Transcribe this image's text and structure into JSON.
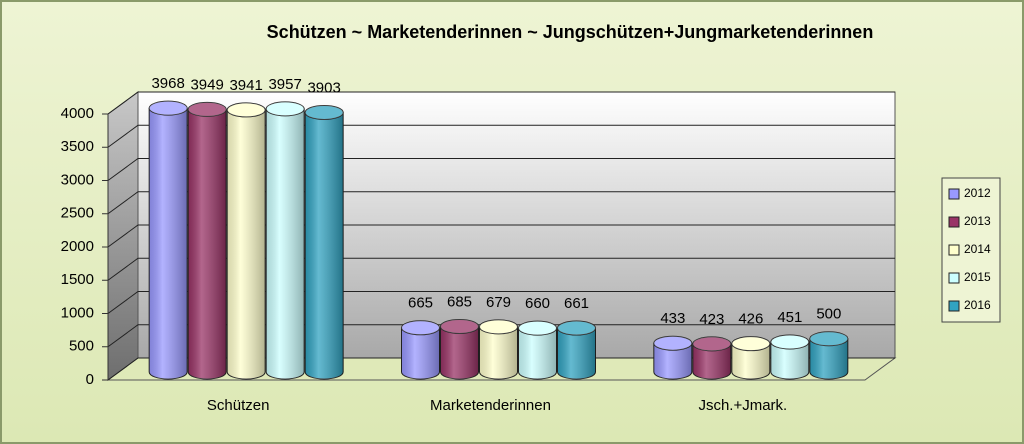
{
  "chart_data": {
    "type": "cylinder-bar",
    "title": "Schützen  ~  Marketenderinnen  ~  Jungschützen+Jungmarketenderinnen",
    "categories": [
      "Schützen",
      "Marketenderinnen",
      "Jsch.+Jmark."
    ],
    "series": [
      {
        "name": "2012",
        "color": "#9999ff",
        "values": [
          3968,
          665,
          433
        ]
      },
      {
        "name": "2013",
        "color": "#993366",
        "values": [
          3949,
          685,
          423
        ]
      },
      {
        "name": "2014",
        "color": "#ffffcc",
        "values": [
          3941,
          679,
          426
        ]
      },
      {
        "name": "2015",
        "color": "#ccffff",
        "values": [
          3957,
          660,
          451
        ]
      },
      {
        "name": "2016",
        "color": "#31a3c1",
        "values": [
          3903,
          661,
          500
        ]
      }
    ],
    "ylim": [
      0,
      4000
    ],
    "yticks": [
      0,
      500,
      1000,
      1500,
      2000,
      2500,
      3000,
      3500,
      4000
    ],
    "grid": true,
    "legend": "right"
  }
}
